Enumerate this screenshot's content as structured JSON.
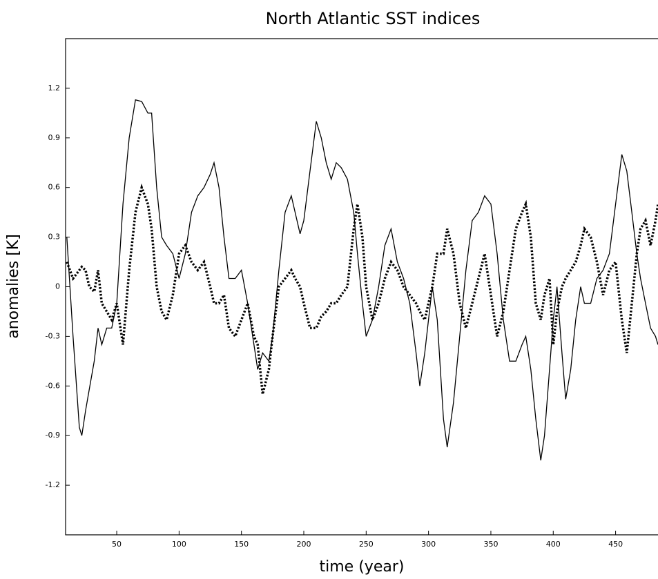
{
  "chart_data": {
    "type": "line",
    "title": "North Atlantic SST indices",
    "xlabel": "time (year)",
    "ylabel": "anomalies [K]",
    "x": [
      10,
      15,
      20,
      22,
      25,
      28,
      32,
      35,
      38,
      42,
      46,
      50,
      55,
      60,
      65,
      70,
      75,
      78,
      82,
      86,
      90,
      95,
      100,
      105,
      110,
      115,
      120,
      125,
      128,
      132,
      136,
      140,
      145,
      150,
      155,
      160,
      163,
      167,
      172,
      175,
      180,
      185,
      190,
      193,
      197,
      200,
      205,
      210,
      214,
      218,
      222,
      226,
      230,
      235,
      240,
      243,
      247,
      250,
      255,
      260,
      265,
      270,
      275,
      280,
      285,
      290,
      293,
      297,
      300,
      303,
      307,
      312,
      315,
      320,
      325,
      330,
      335,
      340,
      345,
      350,
      355,
      360,
      365,
      370,
      375,
      378,
      382,
      386,
      390,
      393,
      397,
      400,
      403,
      407,
      410,
      414,
      418,
      422,
      425,
      430,
      435,
      440,
      445,
      450,
      455,
      459,
      463,
      467,
      470,
      474,
      478,
      482,
      484
    ],
    "series": [
      {
        "color": "#000000",
        "style": "solid",
        "values": [
          0.3,
          -0.3,
          -0.85,
          -0.9,
          -0.75,
          -0.62,
          -0.45,
          -0.25,
          -0.35,
          -0.25,
          -0.25,
          -0.1,
          0.5,
          0.9,
          1.13,
          1.12,
          1.05,
          1.05,
          0.6,
          0.3,
          0.25,
          0.2,
          0.05,
          0.2,
          0.45,
          0.55,
          0.6,
          0.68,
          0.75,
          0.6,
          0.3,
          0.05,
          0.05,
          0.1,
          -0.1,
          -0.35,
          -0.5,
          -0.4,
          -0.45,
          -0.3,
          0.1,
          0.45,
          0.55,
          0.45,
          0.32,
          0.4,
          0.7,
          1.0,
          0.9,
          0.75,
          0.65,
          0.75,
          0.72,
          0.65,
          0.45,
          0.2,
          -0.1,
          -0.3,
          -0.2,
          0.0,
          0.25,
          0.35,
          0.15,
          0.05,
          -0.1,
          -0.4,
          -0.6,
          -0.4,
          -0.2,
          0.0,
          -0.2,
          -0.8,
          -0.97,
          -0.7,
          -0.3,
          0.1,
          0.4,
          0.45,
          0.55,
          0.5,
          0.2,
          -0.2,
          -0.45,
          -0.45,
          -0.35,
          -0.3,
          -0.5,
          -0.8,
          -1.05,
          -0.9,
          -0.5,
          -0.2,
          0.0,
          -0.4,
          -0.68,
          -0.5,
          -0.2,
          0.0,
          -0.1,
          -0.1,
          0.05,
          0.1,
          0.2,
          0.5,
          0.8,
          0.7,
          0.45,
          0.2,
          0.05,
          -0.1,
          -0.25,
          -0.3,
          -0.35
        ]
      },
      {
        "color": "#000000",
        "style": "dotted",
        "values": [
          0.15,
          0.05,
          0.1,
          0.12,
          0.1,
          0.0,
          -0.03,
          0.1,
          -0.1,
          -0.15,
          -0.2,
          -0.1,
          -0.35,
          0.1,
          0.45,
          0.6,
          0.5,
          0.35,
          0.0,
          -0.15,
          -0.2,
          -0.05,
          0.2,
          0.25,
          0.15,
          0.1,
          0.15,
          0.0,
          -0.1,
          -0.1,
          -0.05,
          -0.25,
          -0.3,
          -0.2,
          -0.1,
          -0.3,
          -0.35,
          -0.65,
          -0.5,
          -0.3,
          0.0,
          0.05,
          0.1,
          0.05,
          0.0,
          -0.1,
          -0.25,
          -0.25,
          -0.18,
          -0.15,
          -0.1,
          -0.1,
          -0.05,
          0.0,
          0.35,
          0.5,
          0.3,
          0.0,
          -0.2,
          -0.1,
          0.05,
          0.15,
          0.1,
          0.0,
          -0.05,
          -0.1,
          -0.15,
          -0.2,
          -0.1,
          0.0,
          0.2,
          0.2,
          0.35,
          0.2,
          -0.1,
          -0.25,
          -0.1,
          0.05,
          0.2,
          -0.05,
          -0.3,
          -0.15,
          0.1,
          0.35,
          0.45,
          0.5,
          0.3,
          -0.1,
          -0.2,
          -0.05,
          0.05,
          -0.35,
          -0.15,
          0.0,
          0.05,
          0.1,
          0.15,
          0.25,
          0.35,
          0.3,
          0.15,
          -0.05,
          0.1,
          0.15,
          -0.2,
          -0.4,
          -0.1,
          0.2,
          0.35,
          0.4,
          0.25,
          0.4,
          0.5
        ]
      }
    ],
    "xlim": [
      9,
      484
    ],
    "ylim": [
      -1.5,
      1.5
    ],
    "xticks": [
      50,
      100,
      150,
      200,
      250,
      300,
      350,
      400,
      450
    ],
    "yticks": [
      1.2,
      0.9,
      0.6,
      0.3,
      0,
      -0.3,
      -0.6,
      -0.9,
      -1.2
    ]
  }
}
